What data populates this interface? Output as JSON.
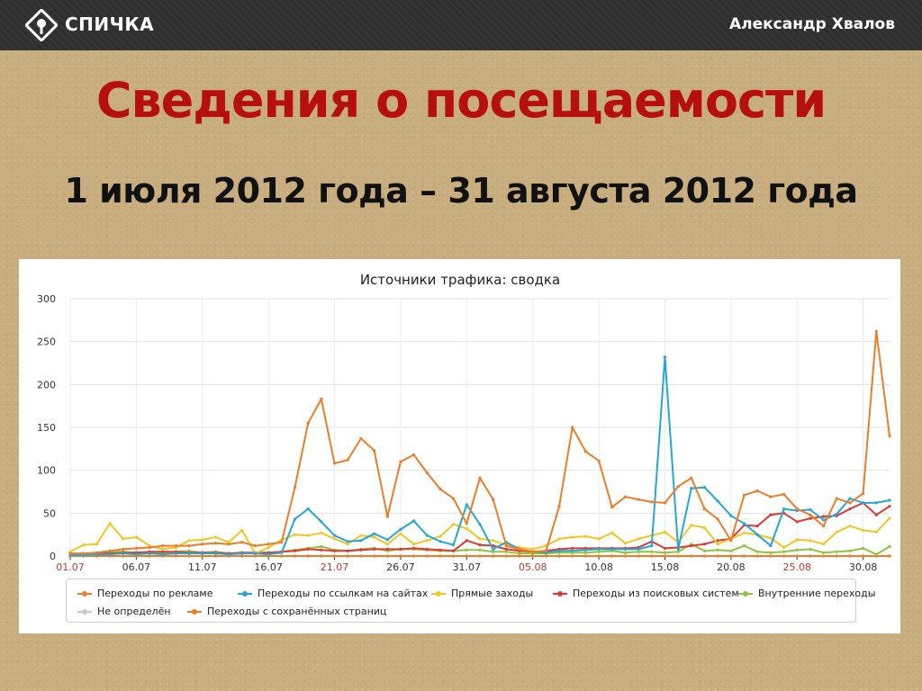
{
  "header": {
    "brand": "СПИЧКА",
    "author": "Александр Хвалов"
  },
  "slide": {
    "title": "Сведения о посещаемости",
    "subtitle": "1 июля 2012 года – 31 августа 2012 года"
  },
  "colors": {
    "accent_title": "#b5100e",
    "ads": "#ee7d28",
    "links": "#25a8d6",
    "direct": "#f3c623",
    "search": "#e03a33",
    "internal": "#8cc63e",
    "undefined": "#c8c8c8",
    "saved": "#ee7d28"
  },
  "chart_data": {
    "type": "line",
    "title": "Источники трафика: сводка",
    "ylim": [
      0,
      300
    ],
    "yticks": [
      0,
      50,
      100,
      150,
      200,
      250,
      300
    ],
    "x_tick_labels": [
      {
        "day": 1,
        "label": "01.07",
        "highlight": true
      },
      {
        "day": 6,
        "label": "06.07",
        "highlight": false
      },
      {
        "day": 11,
        "label": "11.07",
        "highlight": false
      },
      {
        "day": 16,
        "label": "16.07",
        "highlight": false
      },
      {
        "day": 21,
        "label": "21.07",
        "highlight": true
      },
      {
        "day": 26,
        "label": "26.07",
        "highlight": false
      },
      {
        "day": 31,
        "label": "31.07",
        "highlight": false
      },
      {
        "day": 36,
        "label": "05.08",
        "highlight": true
      },
      {
        "day": 41,
        "label": "10.08",
        "highlight": false
      },
      {
        "day": 46,
        "label": "15.08",
        "highlight": false
      },
      {
        "day": 51,
        "label": "20.08",
        "highlight": false
      },
      {
        "day": 56,
        "label": "25.08",
        "highlight": true
      },
      {
        "day": 61,
        "label": "30.08",
        "highlight": false
      }
    ],
    "legend": [
      {
        "key": "ads",
        "name": "Переходы по рекламе"
      },
      {
        "key": "links",
        "name": "Переходы по ссылкам на сайтах"
      },
      {
        "key": "direct",
        "name": "Прямые заходы"
      },
      {
        "key": "search",
        "name": "Переходы из поисковых систем"
      },
      {
        "key": "internal",
        "name": "Внутренние переходы"
      },
      {
        "key": "undefined",
        "name": "Не определён"
      },
      {
        "key": "saved",
        "name": "Переходы с сохранённых страниц"
      }
    ],
    "series": [
      {
        "key": "ads",
        "name": "Переходы по рекламе",
        "values": [
          3,
          3,
          4,
          6,
          8,
          9,
          10,
          12,
          12,
          12,
          14,
          15,
          14,
          16,
          12,
          14,
          16,
          80,
          155,
          183,
          108,
          112,
          137,
          123,
          46,
          110,
          118,
          97,
          78,
          67,
          38,
          91,
          66,
          12,
          8,
          5,
          6,
          58,
          150,
          122,
          111,
          57,
          69,
          66,
          63,
          62,
          81,
          91,
          55,
          43,
          18,
          71,
          76,
          69,
          72,
          55,
          48,
          35,
          67,
          62,
          73,
          262,
          140
        ]
      },
      {
        "key": "links",
        "name": "Переходы по ссылкам на сайтах",
        "values": [
          1,
          1,
          2,
          2,
          3,
          2,
          3,
          2,
          3,
          3,
          3,
          3,
          2,
          3,
          3,
          2,
          4,
          43,
          55,
          40,
          24,
          17,
          18,
          26,
          19,
          31,
          41,
          24,
          17,
          13,
          60,
          37,
          8,
          16,
          8,
          5,
          4,
          6,
          6,
          7,
          8,
          8,
          8,
          8,
          12,
          232,
          8,
          79,
          80,
          64,
          47,
          38,
          25,
          12,
          55,
          53,
          54,
          42,
          49,
          67,
          62,
          62,
          65
        ]
      },
      {
        "key": "direct",
        "name": "Прямые заходы",
        "values": [
          5,
          13,
          14,
          38,
          20,
          22,
          12,
          8,
          10,
          18,
          19,
          22,
          16,
          30,
          3,
          10,
          19,
          25,
          24,
          27,
          20,
          14,
          24,
          22,
          14,
          26,
          14,
          18,
          23,
          37,
          32,
          20,
          18,
          13,
          10,
          8,
          12,
          20,
          22,
          23,
          20,
          27,
          15,
          20,
          24,
          28,
          16,
          36,
          33,
          14,
          20,
          27,
          25,
          21,
          10,
          19,
          18,
          14,
          28,
          35,
          30,
          28,
          44
        ]
      },
      {
        "key": "search",
        "name": "Переходы из поисковых систем",
        "values": [
          3,
          3,
          3,
          3,
          4,
          4,
          5,
          5,
          5,
          4,
          4,
          4,
          3,
          4,
          4,
          4,
          5,
          6,
          8,
          7,
          6,
          6,
          7,
          8,
          8,
          8,
          9,
          8,
          7,
          6,
          18,
          13,
          12,
          8,
          6,
          5,
          6,
          8,
          9,
          9,
          9,
          9,
          9,
          10,
          17,
          9,
          10,
          12,
          14,
          18,
          20,
          36,
          35,
          48,
          50,
          40,
          44,
          46,
          47,
          55,
          62,
          48,
          58
        ]
      },
      {
        "key": "internal",
        "name": "Внутренние переходы",
        "values": [
          1,
          1,
          2,
          5,
          5,
          4,
          3,
          4,
          5,
          6,
          4,
          5,
          3,
          4,
          3,
          2,
          5,
          7,
          9,
          11,
          7,
          6,
          8,
          9,
          6,
          8,
          8,
          7,
          6,
          6,
          7,
          7,
          5,
          5,
          3,
          3,
          3,
          4,
          4,
          4,
          5,
          6,
          4,
          5,
          5,
          4,
          5,
          14,
          6,
          7,
          6,
          12,
          5,
          4,
          5,
          7,
          8,
          4,
          5,
          6,
          9,
          2,
          11
        ]
      },
      {
        "key": "undefined",
        "name": "Не определён",
        "values": [
          0,
          0,
          0,
          0,
          0,
          0,
          0,
          0,
          0,
          0,
          0,
          0,
          0,
          0,
          0,
          0,
          0,
          0,
          0,
          0,
          0,
          0,
          0,
          0,
          0,
          0,
          0,
          0,
          0,
          0,
          0,
          0,
          0,
          0,
          0,
          0,
          0,
          0,
          0,
          0,
          0,
          0,
          0,
          0,
          0,
          0,
          0,
          0,
          0,
          0,
          0,
          0,
          0,
          0,
          0,
          0,
          0,
          0,
          0,
          0,
          0,
          0,
          0
        ]
      },
      {
        "key": "saved",
        "name": "Переходы с сохранённых страниц",
        "values": [
          0,
          0,
          0,
          0,
          0,
          0,
          0,
          0,
          0,
          0,
          0,
          0,
          0,
          0,
          0,
          0,
          0,
          0,
          0,
          0,
          0,
          0,
          0,
          0,
          0,
          0,
          0,
          0,
          0,
          0,
          0,
          0,
          0,
          0,
          0,
          0,
          0,
          0,
          0,
          0,
          0,
          0,
          0,
          0,
          0,
          0,
          0,
          0,
          0,
          0,
          0,
          0,
          0,
          0,
          0,
          0,
          0,
          0,
          0,
          0,
          0,
          0,
          0
        ]
      }
    ]
  }
}
